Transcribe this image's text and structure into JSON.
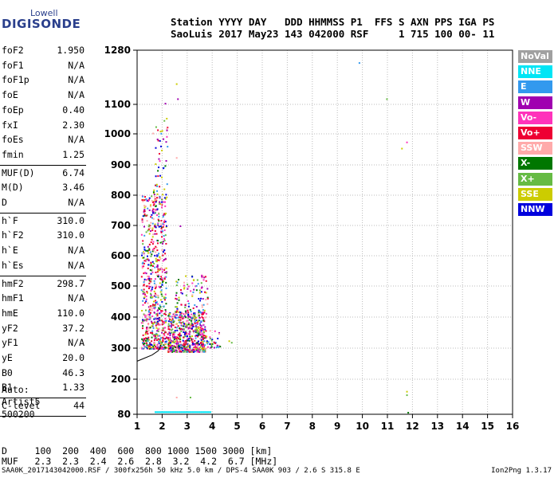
{
  "logo": {
    "top": "Lowell",
    "main": "DIGISONDE"
  },
  "header": {
    "line1": "Station YYYY DAY   DDD HHMMSS P1  FFS S AXN PPS IGA PS",
    "line2": "SaoLuis 2017 May23 143 042000 RSF     1 715 100 00- 11"
  },
  "params": [
    {
      "group": [
        {
          "name": "foF2",
          "value": "1.950"
        },
        {
          "name": "foF1",
          "value": "N/A"
        },
        {
          "name": "foF1p",
          "value": "N/A"
        },
        {
          "name": "foE",
          "value": "N/A"
        },
        {
          "name": "foEp",
          "value": "0.40"
        },
        {
          "name": "fxI",
          "value": "2.30"
        },
        {
          "name": "foEs",
          "value": "N/A"
        },
        {
          "name": "fmin",
          "value": "1.25"
        }
      ]
    },
    {
      "group": [
        {
          "name": "MUF(D)",
          "value": "6.74"
        },
        {
          "name": "M(D)",
          "value": "3.46"
        },
        {
          "name": "D",
          "value": "N/A"
        }
      ]
    },
    {
      "group": [
        {
          "name": "h`F",
          "value": "310.0"
        },
        {
          "name": "h`F2",
          "value": "310.0"
        },
        {
          "name": "h`E",
          "value": "N/A"
        },
        {
          "name": "h`Es",
          "value": "N/A"
        }
      ]
    },
    {
      "group": [
        {
          "name": "hmF2",
          "value": "298.7"
        },
        {
          "name": "hmF1",
          "value": "N/A"
        },
        {
          "name": "hmE",
          "value": "110.0"
        },
        {
          "name": "yF2",
          "value": "37.2"
        },
        {
          "name": "yF1",
          "value": "N/A"
        },
        {
          "name": "yE",
          "value": "20.0"
        },
        {
          "name": "B0",
          "value": "46.3"
        },
        {
          "name": "B1",
          "value": "1.33"
        }
      ]
    },
    {
      "group": [
        {
          "name": "C-level",
          "value": "44"
        }
      ]
    }
  ],
  "auto": {
    "line1": "Auto:",
    "line2": "Artist5",
    "line3": "500200"
  },
  "legend": [
    {
      "label": "NoVal",
      "color": "#a0a0a0"
    },
    {
      "label": "NNE",
      "color": "#00e5f5"
    },
    {
      "label": "E",
      "color": "#3399ee"
    },
    {
      "label": "W",
      "color": "#a000b0"
    },
    {
      "label": "Vo-",
      "color": "#ff33bb"
    },
    {
      "label": "Vo+",
      "color": "#ee0033"
    },
    {
      "label": "SSW",
      "color": "#ffaaaa"
    },
    {
      "label": "X-",
      "color": "#007700"
    },
    {
      "label": "X+",
      "color": "#66bb44"
    },
    {
      "label": "SSE",
      "color": "#cccc00"
    },
    {
      "label": "NNW",
      "color": "#0000dd"
    }
  ],
  "chart_data": {
    "type": "scatter",
    "title": "",
    "xlabel": "",
    "ylabel": "",
    "xlim": [
      1,
      16
    ],
    "ylim": [
      80,
      1280
    ],
    "x_ticks": [
      1,
      2,
      3,
      4,
      5,
      6,
      7,
      8,
      9,
      10,
      11,
      12,
      13,
      14,
      15,
      16
    ],
    "y_ticks": [
      80,
      200,
      300,
      400,
      500,
      600,
      700,
      800,
      900,
      1000,
      1100,
      1280
    ],
    "grid": true,
    "legend_position": "right",
    "profile_curve": {
      "color": "#000000",
      "points": [
        [
          1.0,
          258
        ],
        [
          1.3,
          268
        ],
        [
          1.6,
          278
        ],
        [
          1.85,
          292
        ],
        [
          1.95,
          310
        ]
      ]
    },
    "echo_clusters": [
      {
        "x": [
          1.15,
          2.15
        ],
        "y": [
          300,
          800
        ],
        "count": 700
      },
      {
        "x": [
          1.6,
          2.2
        ],
        "y": [
          780,
          1060
        ],
        "count": 60
      },
      {
        "x": [
          2.2,
          3.7
        ],
        "y": [
          290,
          420
        ],
        "count": 600
      },
      {
        "x": [
          2.5,
          3.8
        ],
        "y": [
          400,
          540
        ],
        "count": 130
      },
      {
        "x": [
          3.5,
          4.3
        ],
        "y": [
          300,
          360
        ],
        "count": 40
      }
    ],
    "isolated_points": [
      {
        "x": 2.55,
        "y": 1170,
        "color": "#cccc00"
      },
      {
        "x": 2.6,
        "y": 1120,
        "color": "#a000b0"
      },
      {
        "x": 2.1,
        "y": 1105,
        "color": "#a000b0"
      },
      {
        "x": 1.8,
        "y": 1015,
        "color": "#ee0033"
      },
      {
        "x": 2.55,
        "y": 925,
        "color": "#ffaaaa"
      },
      {
        "x": 2.7,
        "y": 700,
        "color": "#a000b0"
      },
      {
        "x": 4.65,
        "y": 325,
        "color": "#cccc00"
      },
      {
        "x": 4.75,
        "y": 320,
        "color": "#66bb44"
      },
      {
        "x": 9.85,
        "y": 1240,
        "color": "#3399ee"
      },
      {
        "x": 10.95,
        "y": 1120,
        "color": "#66bb44"
      },
      {
        "x": 11.55,
        "y": 955,
        "color": "#cccc00"
      },
      {
        "x": 11.75,
        "y": 975,
        "color": "#ff33bb"
      },
      {
        "x": 11.75,
        "y": 160,
        "color": "#cccc00"
      },
      {
        "x": 11.75,
        "y": 148,
        "color": "#66bb44"
      },
      {
        "x": 11.8,
        "y": 88,
        "color": "#007700"
      },
      {
        "x": 2.55,
        "y": 140,
        "color": "#ffaaaa"
      },
      {
        "x": 3.1,
        "y": 140,
        "color": "#66bb44"
      }
    ],
    "bottom_echoes": {
      "x": [
        1.7,
        3.9
      ],
      "y": 90,
      "color": "#00e5f5"
    }
  },
  "muf_table": {
    "line1": "D     100  200  400  600  800 1000 1500 3000 [km]",
    "line2": "MUF   2.3  2.3  2.4  2.6  2.8  3.2  4.2  6.7 [MHz]"
  },
  "footer": "SAA0K_2017143042000.RSF / 300fx256h 50 kHz 5.0 km / DPS-4 SAA0K 903 / 2.6 S 315.8 E",
  "version": "Ion2Png 1.3.17"
}
